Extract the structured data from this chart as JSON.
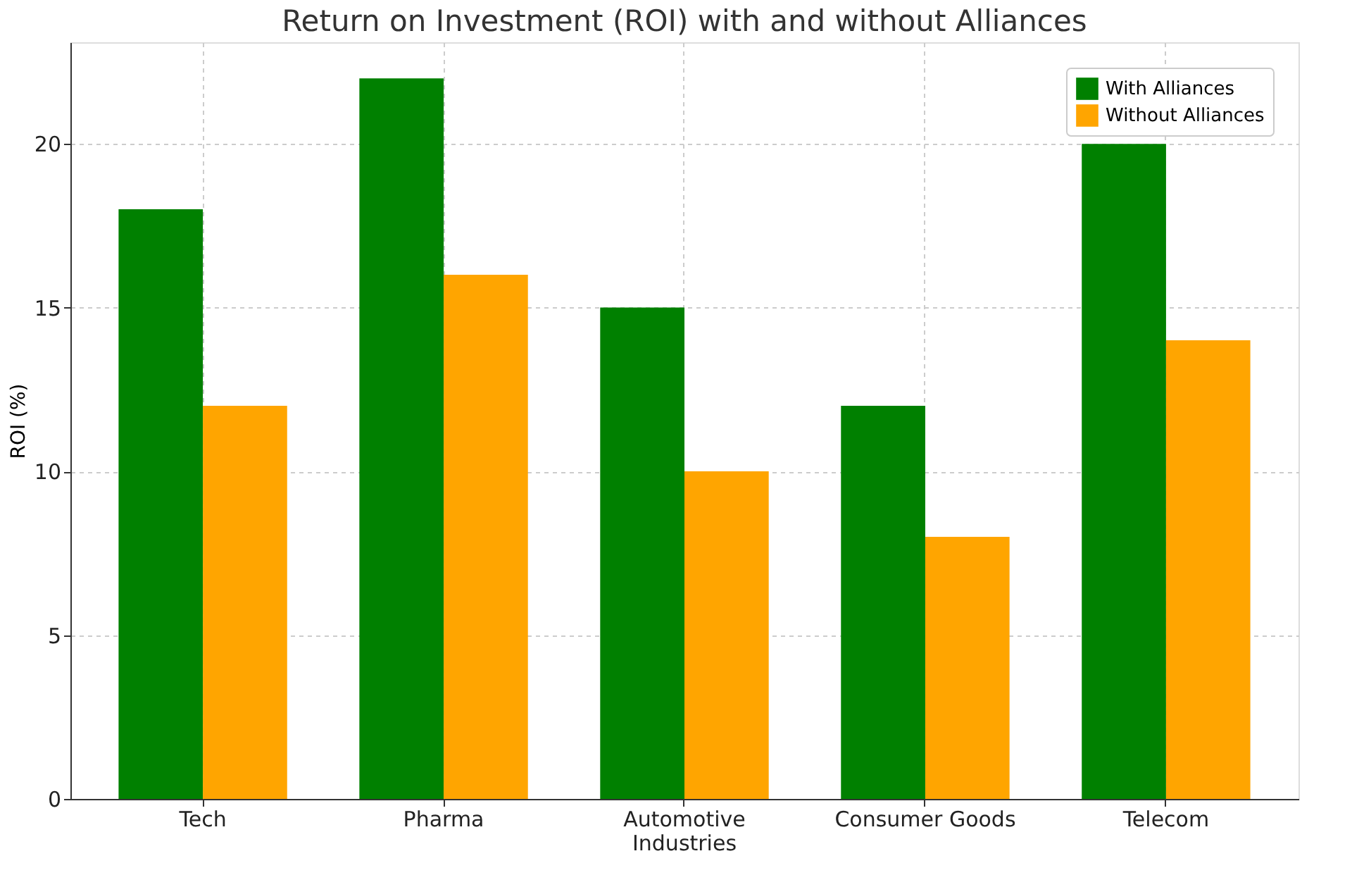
{
  "chart_data": {
    "type": "bar",
    "title": "Return on Investment (ROI) with and without Alliances",
    "ylabel": "ROI (%)",
    "categories": [
      "Tech",
      "Pharma",
      "Automotive\nIndustries",
      "Consumer Goods",
      "Telecom"
    ],
    "series": [
      {
        "name": "With Alliances",
        "color": "#008000",
        "values": [
          18,
          22,
          15,
          12,
          20
        ]
      },
      {
        "name": "Without Alliances",
        "color": "#ffa500",
        "values": [
          12,
          16,
          10,
          8,
          14
        ]
      }
    ],
    "ylim": [
      0,
      23.1
    ],
    "yticks": [
      0,
      5,
      10,
      15,
      20
    ],
    "grid": true,
    "legend": "top right"
  }
}
